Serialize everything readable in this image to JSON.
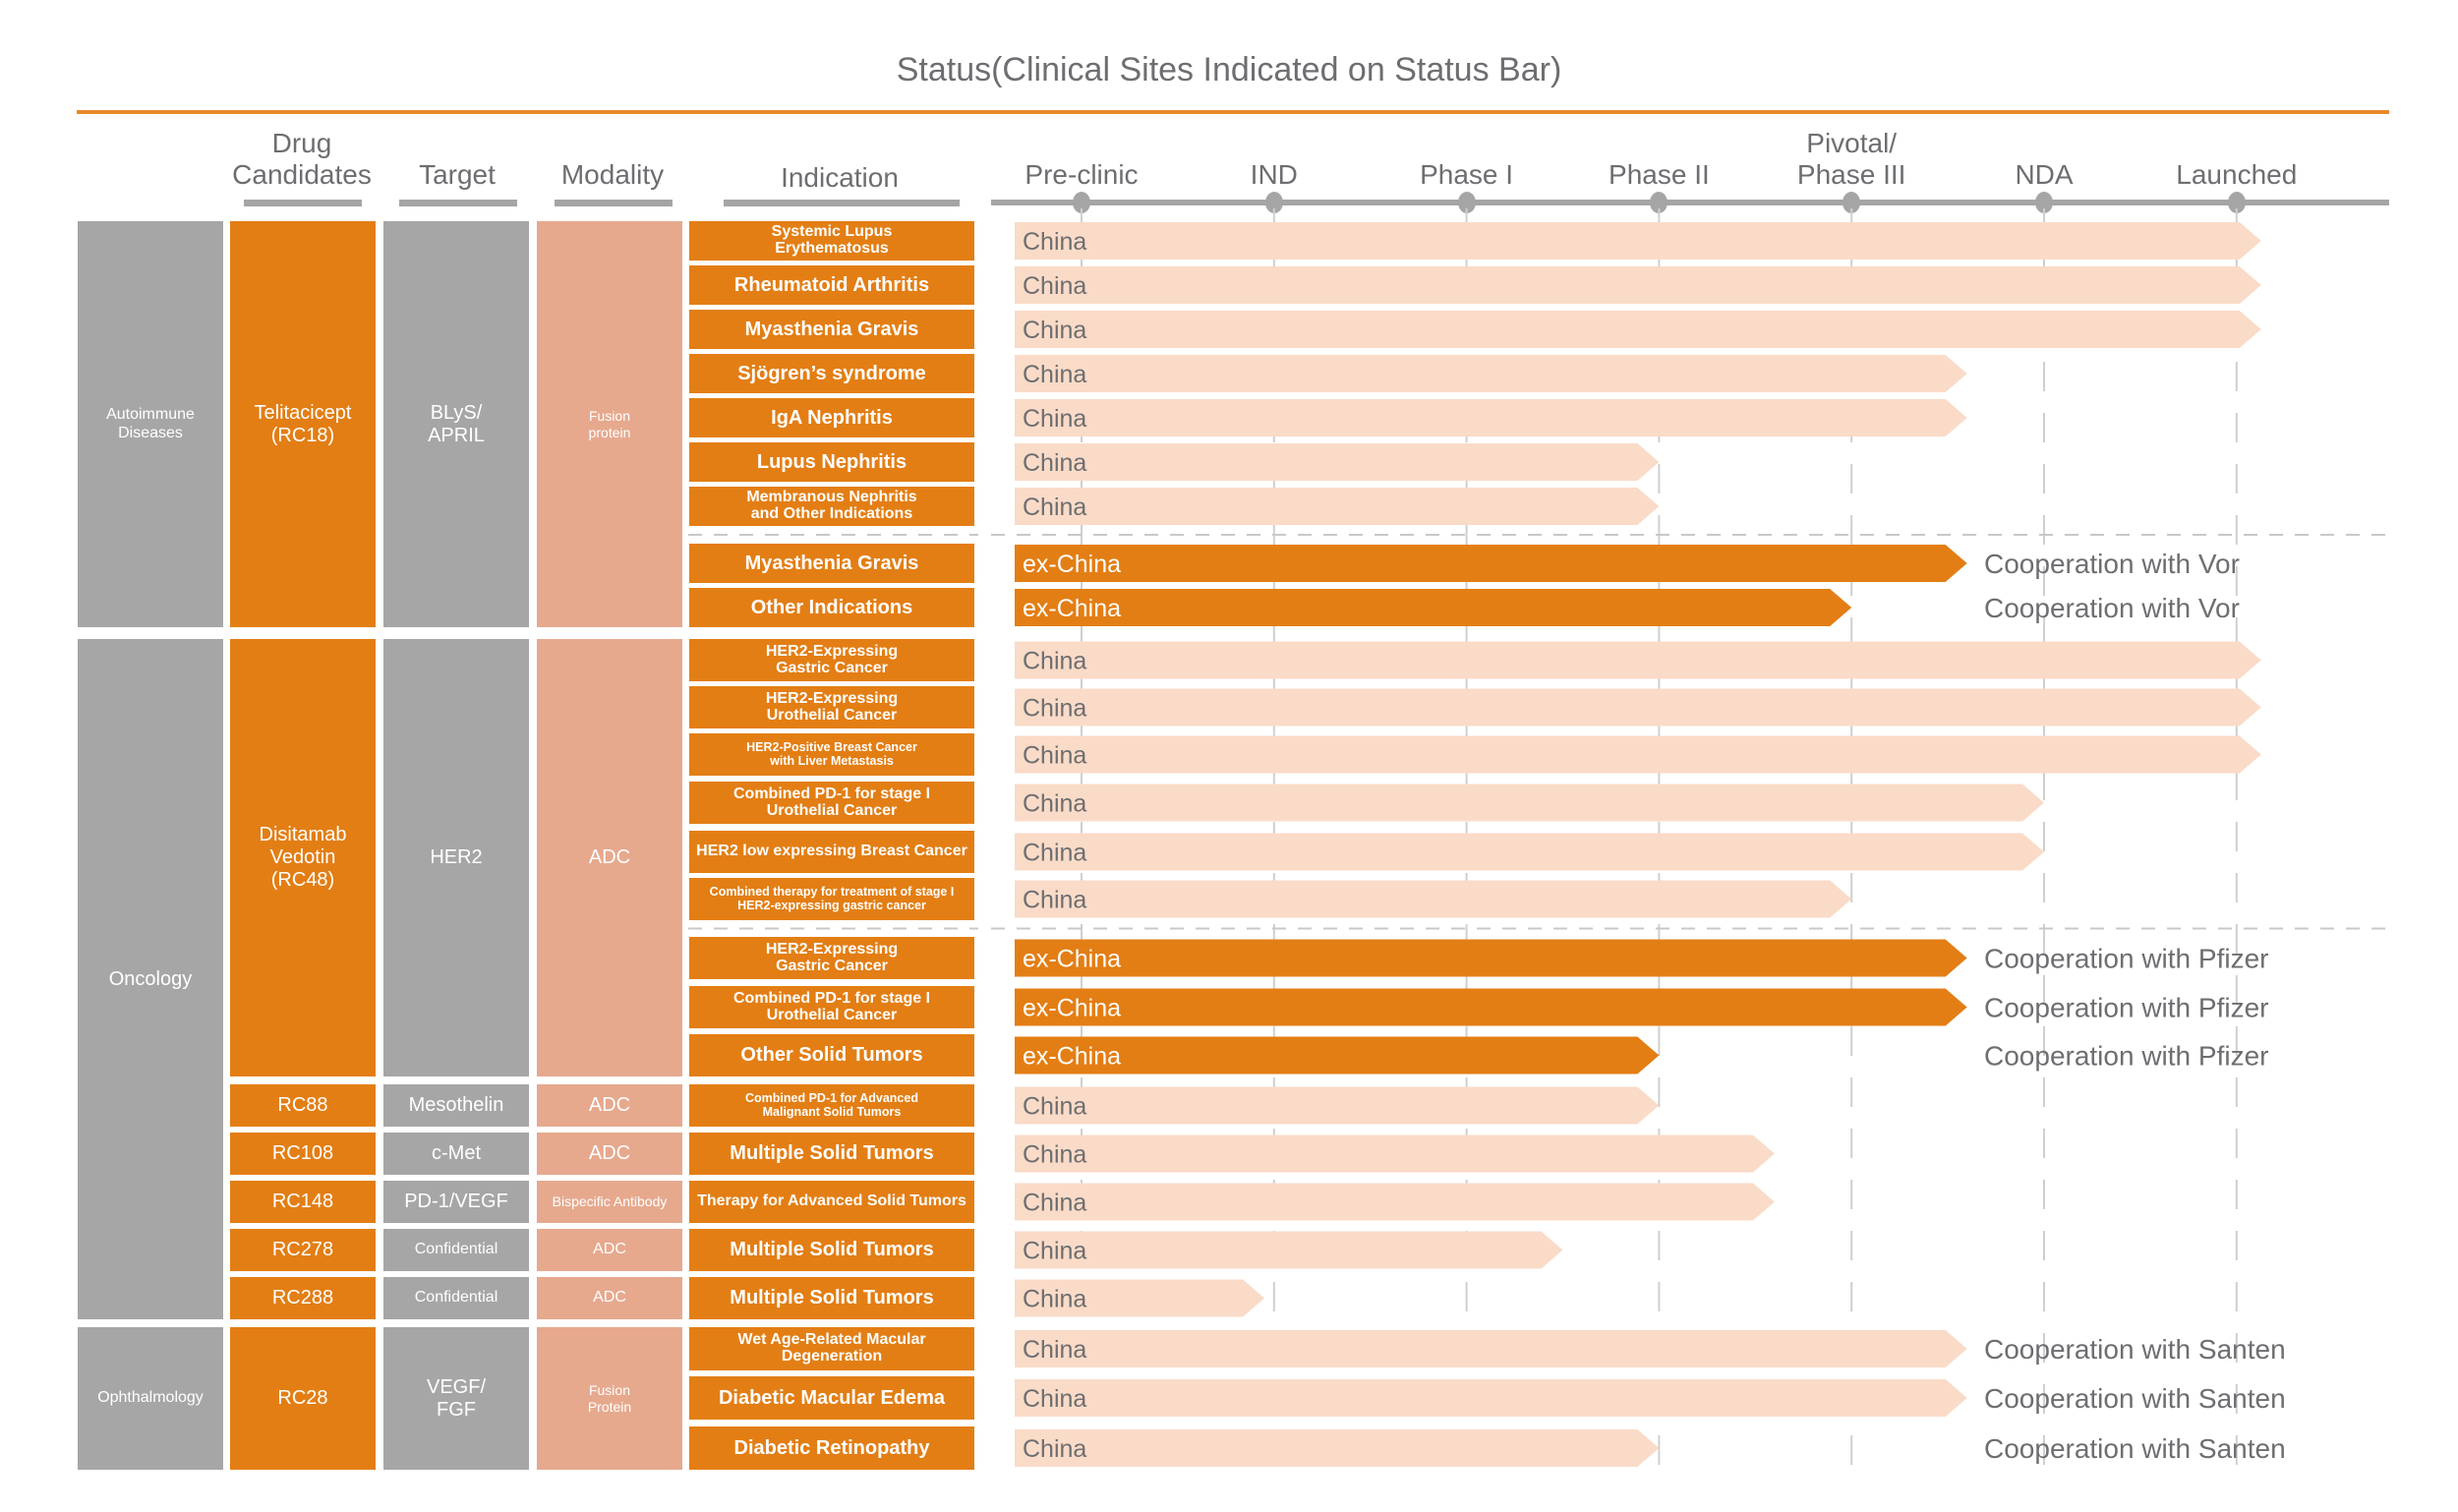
{
  "title": "Status(Clinical Sites Indicated on Status Bar)",
  "columns": {
    "drug_candidates": "Drug\nCandidates",
    "target": "Target",
    "modality": "Modality",
    "indication": "Indication"
  },
  "colors": {
    "accent_orange": "#e37e14",
    "china_bar": "#fadbc8",
    "grey_block": "#a6a6a6",
    "modality_block": "#e6a98e",
    "text_grey": "#6d6e71"
  },
  "groups": [
    {
      "area": "Autoimmune\nDiseases",
      "rows": [
        0,
        8
      ]
    },
    {
      "area": "Oncology",
      "rows": [
        9,
        22
      ]
    },
    {
      "area": "Ophthalmology",
      "rows": [
        23,
        25
      ]
    }
  ],
  "drugs": [
    {
      "name": "Telitacicept\n(RC18)",
      "target": "BLyS/\nAPRIL",
      "modality": "Fusion\nprotein",
      "rows": [
        0,
        8
      ]
    },
    {
      "name": "Disitamab\nVedotin\n(RC48)",
      "target": "HER2",
      "modality": "ADC",
      "rows": [
        9,
        17
      ]
    },
    {
      "name": "RC88",
      "target": "Mesothelin",
      "modality": "ADC",
      "rows": [
        18,
        18
      ]
    },
    {
      "name": "RC108",
      "target": "c-Met",
      "modality": "ADC",
      "rows": [
        19,
        19
      ]
    },
    {
      "name": "RC148",
      "target": "PD-1/VEGF",
      "modality": "Bispecific Antibody",
      "rows": [
        20,
        20
      ]
    },
    {
      "name": "RC278",
      "target": "Confidential",
      "modality": "ADC",
      "rows": [
        21,
        21
      ]
    },
    {
      "name": "RC288",
      "target": "Confidential",
      "modality": "ADC",
      "rows": [
        22,
        22
      ]
    },
    {
      "name": "RC28",
      "target": "VEGF/\nFGF",
      "modality": "Fusion\nProtein",
      "rows": [
        23,
        25
      ]
    }
  ],
  "chart_data": {
    "type": "bar",
    "title": "Status(Clinical Sites Indicated on Status Bar)",
    "orientation": "horizontal",
    "x_axis_stages": [
      "Pre-clinic",
      "IND",
      "Phase I",
      "Phase II",
      "Pivotal/\nPhase III",
      "NDA",
      "Launched"
    ],
    "x_unit": "stage index (0 = Pre-clinic … 6 = Launched)",
    "xlim": [
      0,
      6
    ],
    "grid": "dashed vertical lines at each stage",
    "rows": [
      {
        "indication": "Systemic Lupus\nErythematosus",
        "site": "China",
        "progress": 6.0,
        "partner": ""
      },
      {
        "indication": "Rheumatoid Arthritis",
        "site": "China",
        "progress": 6.0,
        "partner": ""
      },
      {
        "indication": "Myasthenia Gravis",
        "site": "China",
        "progress": 6.0,
        "partner": ""
      },
      {
        "indication": "Sjögren’s syndrome",
        "site": "China",
        "progress": 4.6,
        "partner": ""
      },
      {
        "indication": "IgA Nephritis",
        "site": "China",
        "progress": 4.6,
        "partner": ""
      },
      {
        "indication": "Lupus Nephritis",
        "site": "China",
        "progress": 3.0,
        "partner": ""
      },
      {
        "indication": "Membranous Nephritis\nand Other Indications",
        "site": "China",
        "progress": 3.0,
        "partner": ""
      },
      {
        "indication": "Myasthenia Gravis",
        "site": "ex-China",
        "progress": 4.6,
        "partner": "Cooperation with Vor"
      },
      {
        "indication": "Other Indications",
        "site": "ex-China",
        "progress": 4.0,
        "partner": "Cooperation with Vor"
      },
      {
        "indication": "HER2-Expressing\nGastric Cancer",
        "site": "China",
        "progress": 6.0,
        "partner": ""
      },
      {
        "indication": "HER2-Expressing\nUrothelial Cancer",
        "site": "China",
        "progress": 6.0,
        "partner": ""
      },
      {
        "indication": "HER2-Positive Breast Cancer\nwith Liver Metastasis",
        "site": "China",
        "progress": 6.0,
        "partner": ""
      },
      {
        "indication": "Combined PD-1 for stage I\nUrothelial Cancer",
        "site": "China",
        "progress": 5.0,
        "partner": ""
      },
      {
        "indication": "HER2 low expressing Breast Cancer",
        "site": "China",
        "progress": 5.0,
        "partner": ""
      },
      {
        "indication": "Combined therapy for treatment of stage I\nHER2-expressing gastric cancer",
        "site": "China",
        "progress": 4.0,
        "partner": ""
      },
      {
        "indication": "HER2-Expressing\nGastric Cancer",
        "site": "ex-China",
        "progress": 4.6,
        "partner": "Cooperation with Pfizer"
      },
      {
        "indication": "Combined PD-1 for stage I\nUrothelial Cancer",
        "site": "ex-China",
        "progress": 4.6,
        "partner": "Cooperation with Pfizer"
      },
      {
        "indication": "Other Solid Tumors",
        "site": "ex-China",
        "progress": 3.0,
        "partner": "Cooperation with Pfizer"
      },
      {
        "indication": "Combined PD-1 for Advanced\nMalignant Solid Tumors",
        "site": "China",
        "progress": 3.0,
        "partner": ""
      },
      {
        "indication": "Multiple Solid Tumors",
        "site": "China",
        "progress": 3.6,
        "partner": ""
      },
      {
        "indication": "Therapy for Advanced Solid Tumors",
        "site": "China",
        "progress": 3.6,
        "partner": ""
      },
      {
        "indication": "Multiple Solid Tumors",
        "site": "China",
        "progress": 2.5,
        "partner": ""
      },
      {
        "indication": "Multiple Solid Tumors",
        "site": "China",
        "progress": 0.95,
        "partner": ""
      },
      {
        "indication": "Wet Age-Related Macular\nDegeneration",
        "site": "China",
        "progress": 4.6,
        "partner": "Cooperation with Santen"
      },
      {
        "indication": "Diabetic Macular Edema",
        "site": "China",
        "progress": 4.6,
        "partner": "Cooperation with Santen"
      },
      {
        "indication": "Diabetic Retinopathy",
        "site": "China",
        "progress": 3.0,
        "partner": "Cooperation with Santen"
      }
    ],
    "section_separators_after_rows": [
      6,
      14
    ]
  }
}
